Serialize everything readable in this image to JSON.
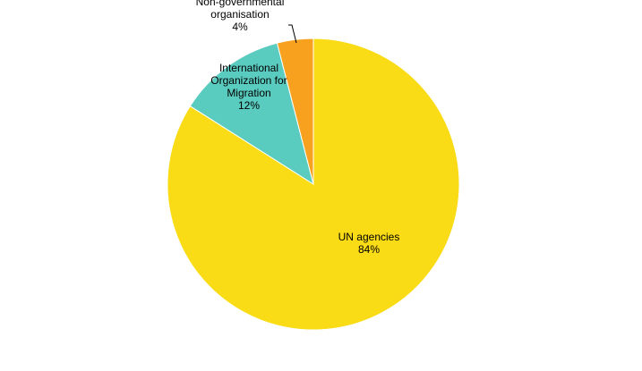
{
  "chart_data": {
    "type": "pie",
    "categories": [
      "UN agencies",
      "International Organization for Migration",
      "Non-governmental organisation"
    ],
    "values": [
      84,
      12,
      4
    ],
    "value_labels": [
      "84%",
      "12%",
      "4%"
    ],
    "label_lines": [
      [
        "UN agencies"
      ],
      [
        "International",
        "Organization for",
        "Migration"
      ],
      [
        "Non-governmental",
        "organisation"
      ]
    ],
    "colors": [
      "#F9DB16",
      "#5ACBBF",
      "#F8A11E"
    ],
    "start_angle_deg": 0,
    "direction": "clockwise",
    "legend": "none",
    "data_labels": "category and percentage"
  }
}
